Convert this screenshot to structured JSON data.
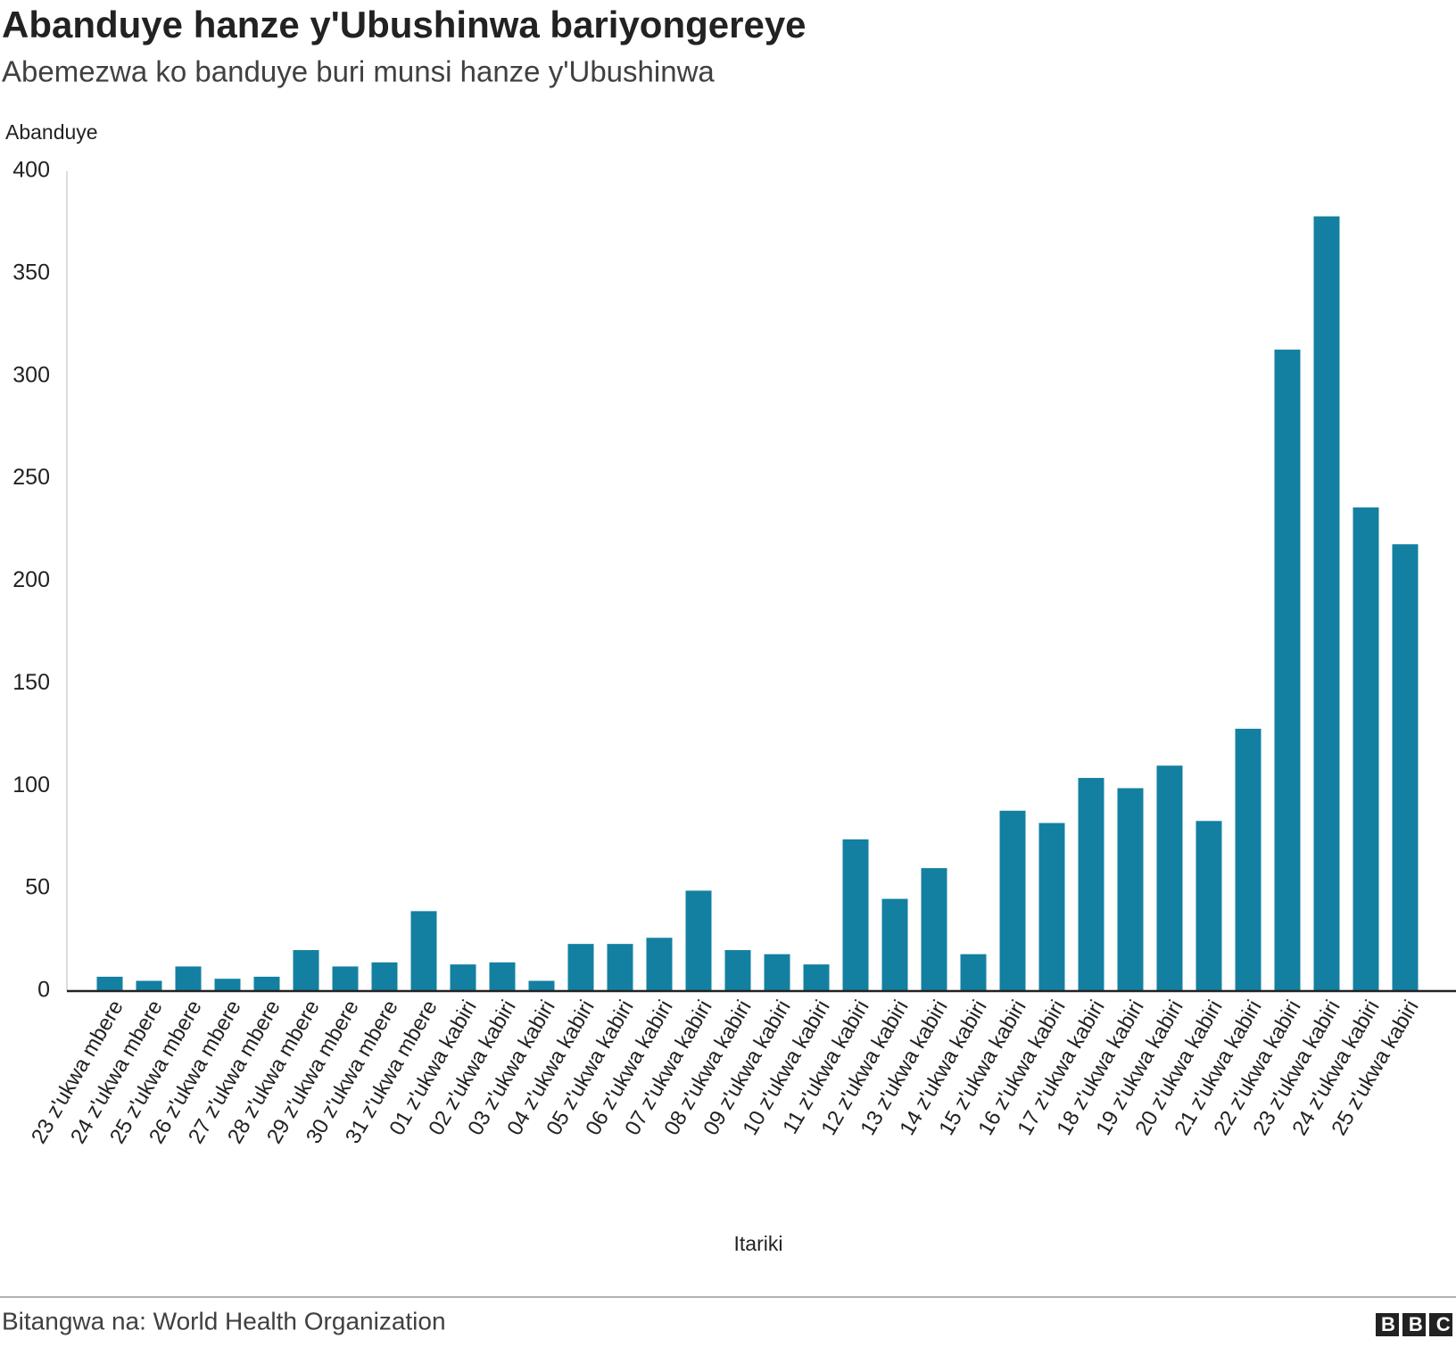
{
  "chart_data": {
    "type": "bar",
    "title": "Abanduye hanze y'Ubushinwa bariyongereye",
    "subtitle": "Abemezwa ko banduye buri munsi hanze y'Ubushinwa",
    "y_label": "Abanduye",
    "x_label": "Itariki",
    "source": "Bitangwa na: World Health Organization",
    "logo": "BBC",
    "categories": [
      "23 z'ukwa mbere",
      "24 z'ukwa mbere",
      "25 z'ukwa mbere",
      "26 z'ukwa mbere",
      "27 z'ukwa mbere",
      "28 z'ukwa mbere",
      "29 z'ukwa mbere",
      "30 z'ukwa mbere",
      "31 z'ukwa mbere",
      "01 z'ukwa kabiri",
      "02 z'ukwa kabiri",
      "03 z'ukwa kabiri",
      "04 z'ukwa kabiri",
      "05 z'ukwa kabiri",
      "06 z'ukwa kabiri",
      "07 z'ukwa kabiri",
      "08 z'ukwa kabiri",
      "09 z'ukwa kabiri",
      "10 z'ukwa kabiri",
      "11 z'ukwa kabiri",
      "12 z'ukwa kabiri",
      "13 z'ukwa kabiri",
      "14 z'ukwa kabiri",
      "15 z'ukwa kabiri",
      "16 z'ukwa kabiri",
      "17 z'ukwa kabiri",
      "18 z'ukwa kabiri",
      "19 z'ukwa kabiri",
      "20 z'ukwa kabiri",
      "21 z'ukwa kabiri",
      "22 z'ukwa kabiri",
      "23 z'ukwa kabiri",
      "24 z'ukwa kabiri",
      "25 z'ukwa kabiri"
    ],
    "values": [
      7,
      5,
      12,
      6,
      7,
      20,
      12,
      14,
      39,
      13,
      14,
      5,
      23,
      23,
      26,
      49,
      20,
      18,
      13,
      74,
      45,
      60,
      18,
      88,
      82,
      104,
      99,
      110,
      83,
      128,
      313,
      378,
      236,
      218
    ],
    "color": "#1380a1",
    "ylim": [
      0,
      400
    ],
    "yticks": [
      0,
      50,
      100,
      150,
      200,
      250,
      300,
      350,
      400
    ],
    "grid": false
  }
}
